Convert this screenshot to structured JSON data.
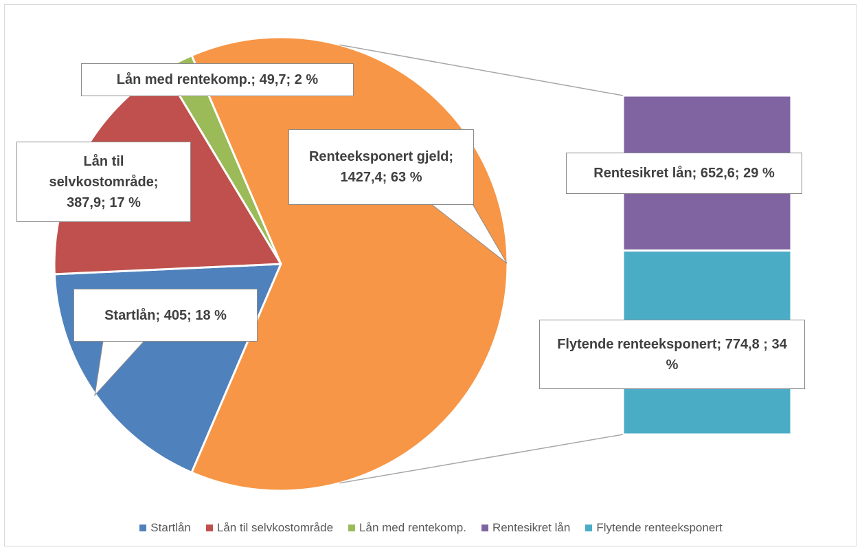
{
  "chart_data": {
    "type": "bar-of-pie",
    "categories": [
      "Startlån",
      "Lån til selvkostområde",
      "Lån med rentekomp.",
      "Renteeksponert gjeld"
    ],
    "values": [
      405,
      387.9,
      49.7,
      1427.4
    ],
    "value_labels": [
      "Startlån; 405; 18 %",
      "Lån til selvkostområde; 387,9; 17 %",
      "Lån med rentekomp.; 49,7; 2 %",
      "Renteeksponert gjeld; 1427,4; 63 %"
    ],
    "colors": [
      "#4f81bd",
      "#c0504d",
      "#9bbb59",
      "#f79646"
    ],
    "secondary": {
      "categories": [
        "Rentesikret lån",
        "Flytende renteeksponert"
      ],
      "values": [
        652.6,
        774.8
      ],
      "value_labels": [
        "Rentesikret lån; 652,6; 29 %",
        "Flytende renteeksponert; 774,8 ; 34 %"
      ],
      "colors": [
        "#8064a2",
        "#4bacc6"
      ]
    },
    "legend": "bottom"
  }
}
